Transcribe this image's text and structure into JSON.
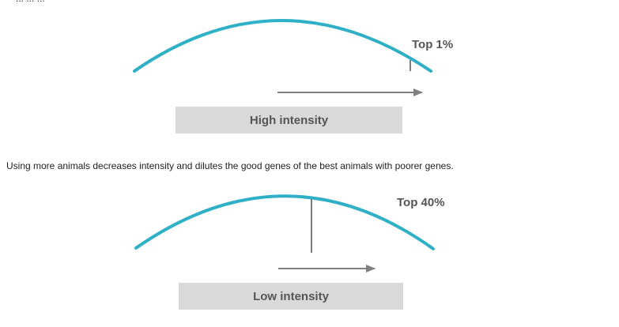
{
  "intro_text_clipped": "... ... ...",
  "panels": [
    {
      "top_label": "Top 1%",
      "box_label": "High intensity"
    },
    {
      "top_label": "Top 40%",
      "box_label": "Low intensity"
    }
  ],
  "caption": "Using more animals decreases intensity and dilutes the good genes of the best animals with poorer genes.",
  "colors": {
    "curve": "#2fb0c6",
    "marker": "#7f7f7f",
    "box": "#d9d9d9",
    "label_text": "#555555"
  }
}
